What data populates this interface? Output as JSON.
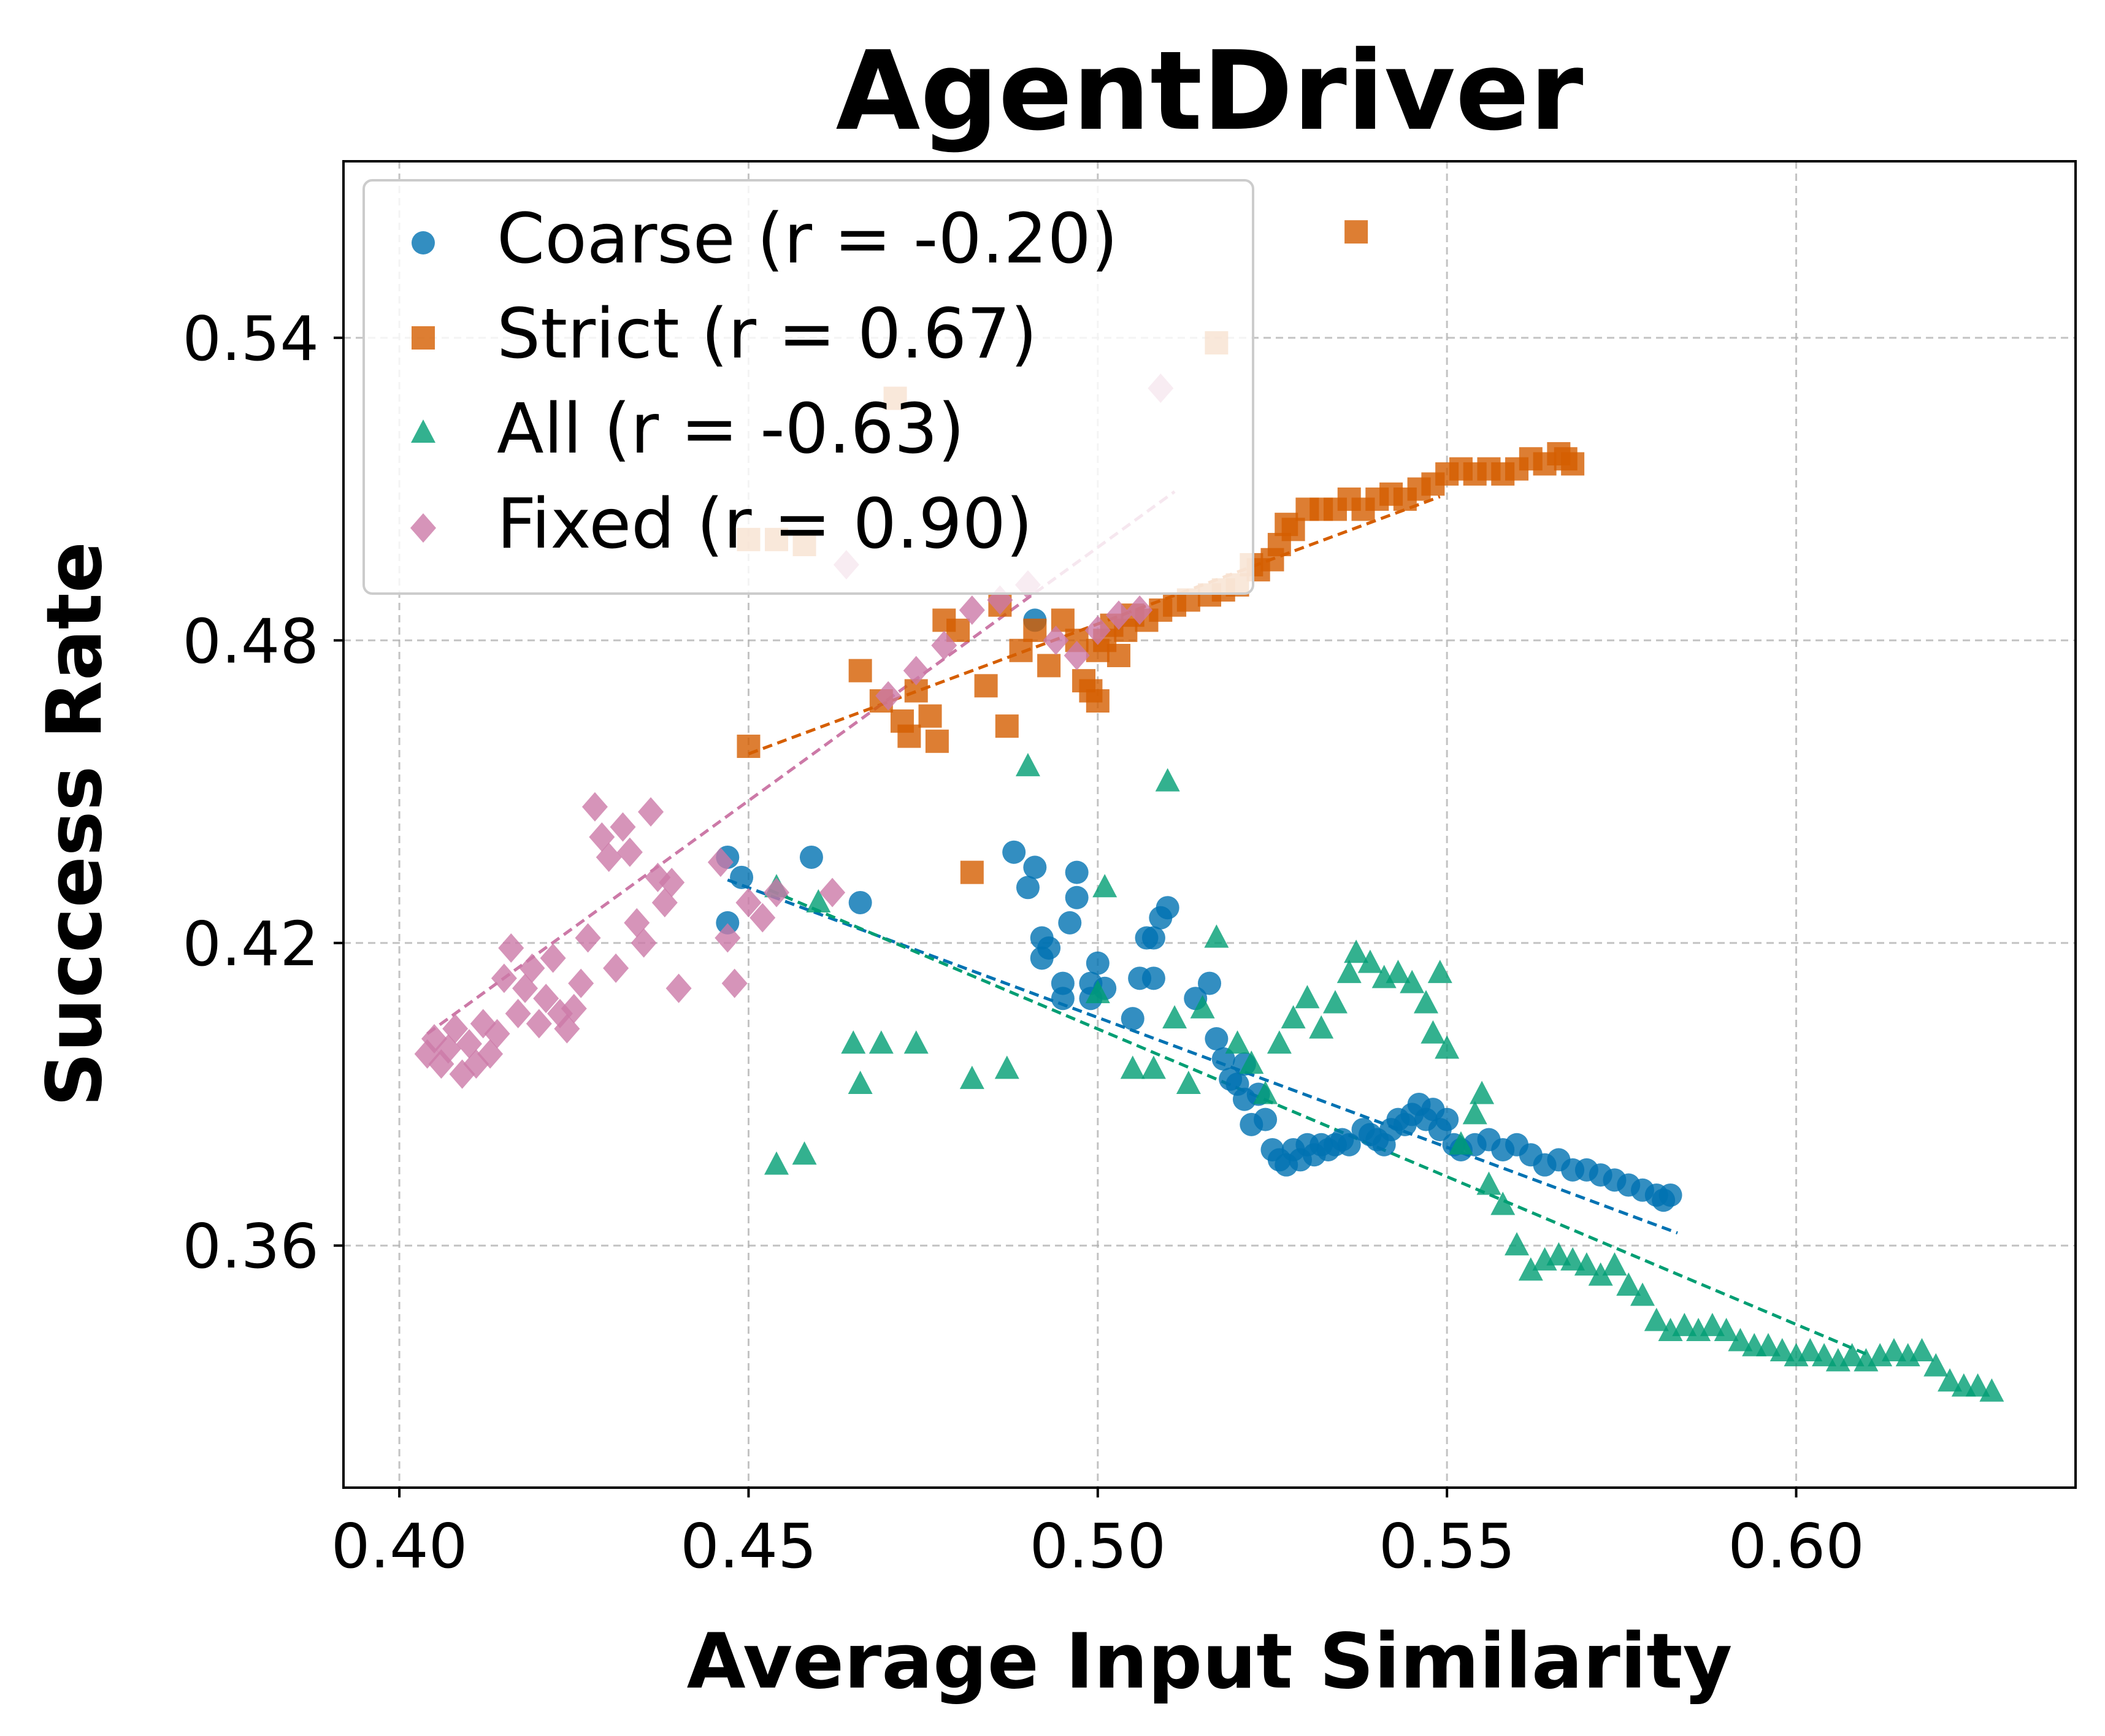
{
  "chart_data": {
    "type": "scatter",
    "title": "AgentDriver",
    "xlabel": "Average Input Similarity",
    "ylabel": "Success Rate",
    "xlim": [
      0.392,
      0.64
    ],
    "ylim": [
      0.312,
      0.575
    ],
    "xticks": [
      0.4,
      0.45,
      0.5,
      0.55,
      0.6
    ],
    "yticks": [
      0.36,
      0.42,
      0.48,
      0.54
    ],
    "xtick_labels": [
      "0.40",
      "0.45",
      "0.50",
      "0.55",
      "0.60"
    ],
    "ytick_labels": [
      "0.36",
      "0.42",
      "0.48",
      "0.54"
    ],
    "grid": true,
    "legend_position": "top-left",
    "series": [
      {
        "name": "Coarse",
        "label": "Coarse (r = -0.20)",
        "r": -0.2,
        "marker": "circle",
        "color": "#0072B2",
        "fit": [
          [
            0.447,
            0.4325
          ],
          [
            0.583,
            0.3625
          ]
        ],
        "points": [
          [
            0.447,
            0.437
          ],
          [
            0.447,
            0.424
          ],
          [
            0.449,
            0.433
          ],
          [
            0.459,
            0.437
          ],
          [
            0.466,
            0.428
          ],
          [
            0.488,
            0.438
          ],
          [
            0.49,
            0.431
          ],
          [
            0.491,
            0.435
          ],
          [
            0.491,
            0.484
          ],
          [
            0.492,
            0.421
          ],
          [
            0.493,
            0.419
          ],
          [
            0.492,
            0.417
          ],
          [
            0.495,
            0.409
          ],
          [
            0.495,
            0.412
          ],
          [
            0.496,
            0.424
          ],
          [
            0.497,
            0.429
          ],
          [
            0.497,
            0.434
          ],
          [
            0.499,
            0.412
          ],
          [
            0.499,
            0.409
          ],
          [
            0.5,
            0.416
          ],
          [
            0.501,
            0.411
          ],
          [
            0.505,
            0.405
          ],
          [
            0.506,
            0.413
          ],
          [
            0.507,
            0.421
          ],
          [
            0.508,
            0.421
          ],
          [
            0.508,
            0.413
          ],
          [
            0.509,
            0.425
          ],
          [
            0.51,
            0.427
          ],
          [
            0.514,
            0.409
          ],
          [
            0.516,
            0.412
          ],
          [
            0.517,
            0.401
          ],
          [
            0.518,
            0.397
          ],
          [
            0.519,
            0.393
          ],
          [
            0.52,
            0.392
          ],
          [
            0.521,
            0.389
          ],
          [
            0.521,
            0.396
          ],
          [
            0.522,
            0.384
          ],
          [
            0.523,
            0.39
          ],
          [
            0.524,
            0.385
          ],
          [
            0.525,
            0.379
          ],
          [
            0.526,
            0.377
          ],
          [
            0.527,
            0.376
          ],
          [
            0.528,
            0.379
          ],
          [
            0.529,
            0.377
          ],
          [
            0.53,
            0.38
          ],
          [
            0.531,
            0.378
          ],
          [
            0.532,
            0.38
          ],
          [
            0.533,
            0.379
          ],
          [
            0.534,
            0.38
          ],
          [
            0.535,
            0.381
          ],
          [
            0.536,
            0.38
          ],
          [
            0.538,
            0.383
          ],
          [
            0.539,
            0.382
          ],
          [
            0.54,
            0.381
          ],
          [
            0.541,
            0.38
          ],
          [
            0.542,
            0.383
          ],
          [
            0.543,
            0.385
          ],
          [
            0.544,
            0.384
          ],
          [
            0.545,
            0.386
          ],
          [
            0.546,
            0.388
          ],
          [
            0.547,
            0.385
          ],
          [
            0.548,
            0.387
          ],
          [
            0.549,
            0.383
          ],
          [
            0.55,
            0.385
          ],
          [
            0.551,
            0.38
          ],
          [
            0.552,
            0.379
          ],
          [
            0.554,
            0.38
          ],
          [
            0.556,
            0.381
          ],
          [
            0.558,
            0.379
          ],
          [
            0.56,
            0.38
          ],
          [
            0.562,
            0.378
          ],
          [
            0.564,
            0.376
          ],
          [
            0.566,
            0.377
          ],
          [
            0.568,
            0.375
          ],
          [
            0.57,
            0.375
          ],
          [
            0.572,
            0.374
          ],
          [
            0.574,
            0.373
          ],
          [
            0.576,
            0.372
          ],
          [
            0.578,
            0.371
          ],
          [
            0.58,
            0.37
          ],
          [
            0.581,
            0.369
          ],
          [
            0.582,
            0.37
          ]
        ]
      },
      {
        "name": "Strict",
        "label": "Strict (r = 0.67)",
        "r": 0.67,
        "marker": "square",
        "color": "#D55E00",
        "fit": [
          [
            0.45,
            0.4575
          ],
          [
            0.549,
            0.5085
          ]
        ],
        "points": [
          [
            0.45,
            0.459
          ],
          [
            0.45,
            0.5
          ],
          [
            0.454,
            0.5
          ],
          [
            0.458,
            0.499
          ],
          [
            0.466,
            0.474
          ],
          [
            0.469,
            0.468
          ],
          [
            0.471,
            0.528
          ],
          [
            0.472,
            0.464
          ],
          [
            0.473,
            0.461
          ],
          [
            0.474,
            0.47
          ],
          [
            0.476,
            0.465
          ],
          [
            0.477,
            0.46
          ],
          [
            0.478,
            0.484
          ],
          [
            0.48,
            0.482
          ],
          [
            0.482,
            0.434
          ],
          [
            0.484,
            0.471
          ],
          [
            0.486,
            0.487
          ],
          [
            0.487,
            0.463
          ],
          [
            0.489,
            0.478
          ],
          [
            0.491,
            0.482
          ],
          [
            0.493,
            0.475
          ],
          [
            0.495,
            0.484
          ],
          [
            0.497,
            0.48
          ],
          [
            0.498,
            0.472
          ],
          [
            0.499,
            0.47
          ],
          [
            0.5,
            0.468
          ],
          [
            0.5,
            0.478
          ],
          [
            0.501,
            0.48
          ],
          [
            0.502,
            0.483
          ],
          [
            0.503,
            0.477
          ],
          [
            0.504,
            0.482
          ],
          [
            0.505,
            0.485
          ],
          [
            0.507,
            0.484
          ],
          [
            0.509,
            0.486
          ],
          [
            0.511,
            0.487
          ],
          [
            0.513,
            0.488
          ],
          [
            0.516,
            0.489
          ],
          [
            0.517,
            0.539
          ],
          [
            0.518,
            0.49
          ],
          [
            0.52,
            0.491
          ],
          [
            0.522,
            0.495
          ],
          [
            0.523,
            0.494
          ],
          [
            0.525,
            0.496
          ],
          [
            0.526,
            0.499
          ],
          [
            0.527,
            0.503
          ],
          [
            0.528,
            0.502
          ],
          [
            0.53,
            0.506
          ],
          [
            0.532,
            0.506
          ],
          [
            0.534,
            0.506
          ],
          [
            0.536,
            0.508
          ],
          [
            0.537,
            0.561
          ],
          [
            0.538,
            0.506
          ],
          [
            0.54,
            0.508
          ],
          [
            0.542,
            0.509
          ],
          [
            0.544,
            0.508
          ],
          [
            0.546,
            0.51
          ],
          [
            0.548,
            0.511
          ],
          [
            0.55,
            0.513
          ],
          [
            0.552,
            0.514
          ],
          [
            0.554,
            0.513
          ],
          [
            0.556,
            0.514
          ],
          [
            0.558,
            0.513
          ],
          [
            0.56,
            0.514
          ],
          [
            0.562,
            0.516
          ],
          [
            0.564,
            0.515
          ],
          [
            0.566,
            0.517
          ],
          [
            0.567,
            0.516
          ],
          [
            0.568,
            0.515
          ]
        ]
      },
      {
        "name": "All",
        "label": "All (r = -0.63)",
        "r": -0.63,
        "marker": "triangle",
        "color": "#009E73",
        "fit": [
          [
            0.453,
            0.4305
          ],
          [
            0.61,
            0.3385
          ]
        ],
        "points": [
          [
            0.454,
            0.376
          ],
          [
            0.454,
            0.431
          ],
          [
            0.458,
            0.378
          ],
          [
            0.46,
            0.428
          ],
          [
            0.465,
            0.4
          ],
          [
            0.466,
            0.392
          ],
          [
            0.469,
            0.4
          ],
          [
            0.474,
            0.4
          ],
          [
            0.482,
            0.393
          ],
          [
            0.487,
            0.395
          ],
          [
            0.49,
            0.455
          ],
          [
            0.5,
            0.41
          ],
          [
            0.501,
            0.431
          ],
          [
            0.505,
            0.395
          ],
          [
            0.508,
            0.395
          ],
          [
            0.51,
            0.452
          ],
          [
            0.511,
            0.405
          ],
          [
            0.513,
            0.392
          ],
          [
            0.515,
            0.407
          ],
          [
            0.517,
            0.421
          ],
          [
            0.52,
            0.4
          ],
          [
            0.522,
            0.396
          ],
          [
            0.524,
            0.39
          ],
          [
            0.526,
            0.4
          ],
          [
            0.528,
            0.405
          ],
          [
            0.53,
            0.409
          ],
          [
            0.532,
            0.403
          ],
          [
            0.534,
            0.408
          ],
          [
            0.536,
            0.414
          ],
          [
            0.537,
            0.418
          ],
          [
            0.539,
            0.416
          ],
          [
            0.541,
            0.413
          ],
          [
            0.543,
            0.414
          ],
          [
            0.545,
            0.412
          ],
          [
            0.547,
            0.408
          ],
          [
            0.548,
            0.402
          ],
          [
            0.549,
            0.414
          ],
          [
            0.55,
            0.399
          ],
          [
            0.552,
            0.38
          ],
          [
            0.554,
            0.386
          ],
          [
            0.555,
            0.39
          ],
          [
            0.556,
            0.372
          ],
          [
            0.558,
            0.368
          ],
          [
            0.56,
            0.36
          ],
          [
            0.562,
            0.355
          ],
          [
            0.564,
            0.357
          ],
          [
            0.566,
            0.358
          ],
          [
            0.568,
            0.357
          ],
          [
            0.57,
            0.356
          ],
          [
            0.572,
            0.354
          ],
          [
            0.574,
            0.356
          ],
          [
            0.576,
            0.352
          ],
          [
            0.578,
            0.35
          ],
          [
            0.58,
            0.345
          ],
          [
            0.582,
            0.343
          ],
          [
            0.584,
            0.344
          ],
          [
            0.586,
            0.343
          ],
          [
            0.588,
            0.344
          ],
          [
            0.59,
            0.343
          ],
          [
            0.592,
            0.341
          ],
          [
            0.594,
            0.34
          ],
          [
            0.596,
            0.34
          ],
          [
            0.598,
            0.339
          ],
          [
            0.6,
            0.338
          ],
          [
            0.602,
            0.339
          ],
          [
            0.604,
            0.338
          ],
          [
            0.606,
            0.337
          ],
          [
            0.608,
            0.338
          ],
          [
            0.61,
            0.337
          ],
          [
            0.612,
            0.338
          ],
          [
            0.614,
            0.339
          ],
          [
            0.616,
            0.338
          ],
          [
            0.618,
            0.339
          ],
          [
            0.62,
            0.336
          ],
          [
            0.622,
            0.333
          ],
          [
            0.624,
            0.332
          ],
          [
            0.626,
            0.332
          ],
          [
            0.628,
            0.331
          ]
        ]
      },
      {
        "name": "Fixed",
        "label": "Fixed (r = 0.90)",
        "r": 0.9,
        "marker": "diamond",
        "color": "#CC79A7",
        "fit": [
          [
            0.404,
            0.402
          ],
          [
            0.511,
            0.5095
          ]
        ],
        "points": [
          [
            0.404,
            0.398
          ],
          [
            0.405,
            0.401
          ],
          [
            0.406,
            0.396
          ],
          [
            0.407,
            0.399
          ],
          [
            0.408,
            0.403
          ],
          [
            0.409,
            0.394
          ],
          [
            0.41,
            0.4
          ],
          [
            0.411,
            0.396
          ],
          [
            0.412,
            0.404
          ],
          [
            0.413,
            0.398
          ],
          [
            0.414,
            0.402
          ],
          [
            0.415,
            0.413
          ],
          [
            0.416,
            0.419
          ],
          [
            0.417,
            0.406
          ],
          [
            0.418,
            0.411
          ],
          [
            0.419,
            0.415
          ],
          [
            0.42,
            0.404
          ],
          [
            0.421,
            0.409
          ],
          [
            0.422,
            0.417
          ],
          [
            0.423,
            0.406
          ],
          [
            0.424,
            0.403
          ],
          [
            0.425,
            0.407
          ],
          [
            0.426,
            0.412
          ],
          [
            0.427,
            0.421
          ],
          [
            0.428,
            0.447
          ],
          [
            0.429,
            0.441
          ],
          [
            0.43,
            0.437
          ],
          [
            0.431,
            0.415
          ],
          [
            0.432,
            0.443
          ],
          [
            0.433,
            0.438
          ],
          [
            0.434,
            0.424
          ],
          [
            0.435,
            0.42
          ],
          [
            0.436,
            0.446
          ],
          [
            0.437,
            0.433
          ],
          [
            0.438,
            0.428
          ],
          [
            0.439,
            0.432
          ],
          [
            0.44,
            0.411
          ],
          [
            0.446,
            0.436
          ],
          [
            0.447,
            0.421
          ],
          [
            0.448,
            0.412
          ],
          [
            0.45,
            0.428
          ],
          [
            0.452,
            0.425
          ],
          [
            0.454,
            0.43
          ],
          [
            0.462,
            0.43
          ],
          [
            0.464,
            0.495
          ],
          [
            0.47,
            0.469
          ],
          [
            0.474,
            0.474
          ],
          [
            0.478,
            0.479
          ],
          [
            0.482,
            0.486
          ],
          [
            0.486,
            0.488
          ],
          [
            0.49,
            0.491
          ],
          [
            0.494,
            0.48
          ],
          [
            0.497,
            0.477
          ],
          [
            0.5,
            0.482
          ],
          [
            0.503,
            0.485
          ],
          [
            0.506,
            0.486
          ],
          [
            0.509,
            0.53
          ]
        ]
      }
    ]
  }
}
